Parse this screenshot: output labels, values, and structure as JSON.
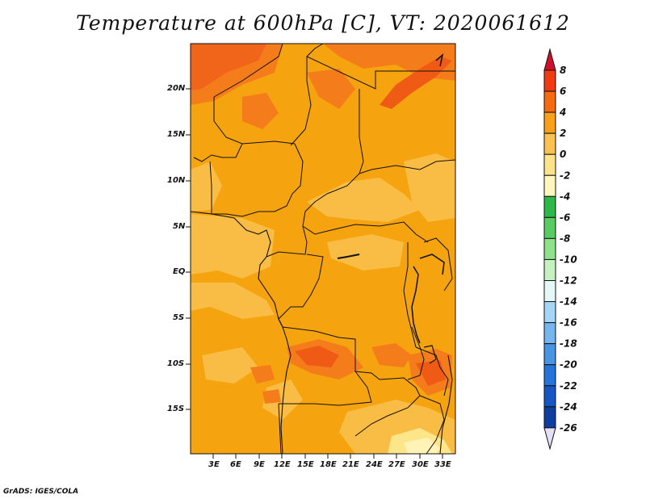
{
  "title": "Temperature at 600hPa [C], VT: 2020061612",
  "footer": "GrADS: IGES/COLA",
  "map": {
    "lat_labels": [
      "20N",
      "15N",
      "10N",
      "5N",
      "EQ",
      "5S",
      "10S",
      "15S"
    ],
    "lon_labels": [
      "3E",
      "6E",
      "9E",
      "12E",
      "15E",
      "18E",
      "21E",
      "24E",
      "27E",
      "30E",
      "33E"
    ],
    "extent": {
      "lon_min": 0,
      "lon_max": 34.5,
      "lat_min": -19.5,
      "lat_max": 24.5
    }
  },
  "colorbar": {
    "labels": [
      "8",
      "6",
      "4",
      "2",
      "0",
      "-2",
      "-4",
      "-6",
      "-8",
      "-10",
      "-12",
      "-14",
      "-16",
      "-18",
      "-20",
      "-22",
      "-24",
      "-26"
    ],
    "colors": [
      "#d0102a",
      "#f03a12",
      "#f66a10",
      "#f7a01a",
      "#f9c252",
      "#fde38a",
      "#fff7c0",
      "#2eb84a",
      "#58cc62",
      "#8fe28c",
      "#c6f1c0",
      "#e6f7f7",
      "#a6d6f7",
      "#76b6ee",
      "#4a94e4",
      "#2474dc",
      "#1656c2",
      "#0e3ea0",
      "#0b1f78",
      "#0a0b4a",
      "#e3e0f8"
    ]
  },
  "palette": {
    "background_orange": "#f5a30e",
    "light_orange": "#f9bd45",
    "darker_orange": "#f57c1a",
    "hot_red_orange": "#ef5a14",
    "pale_yellow": "#fde68a",
    "border_color": "#111111"
  }
}
